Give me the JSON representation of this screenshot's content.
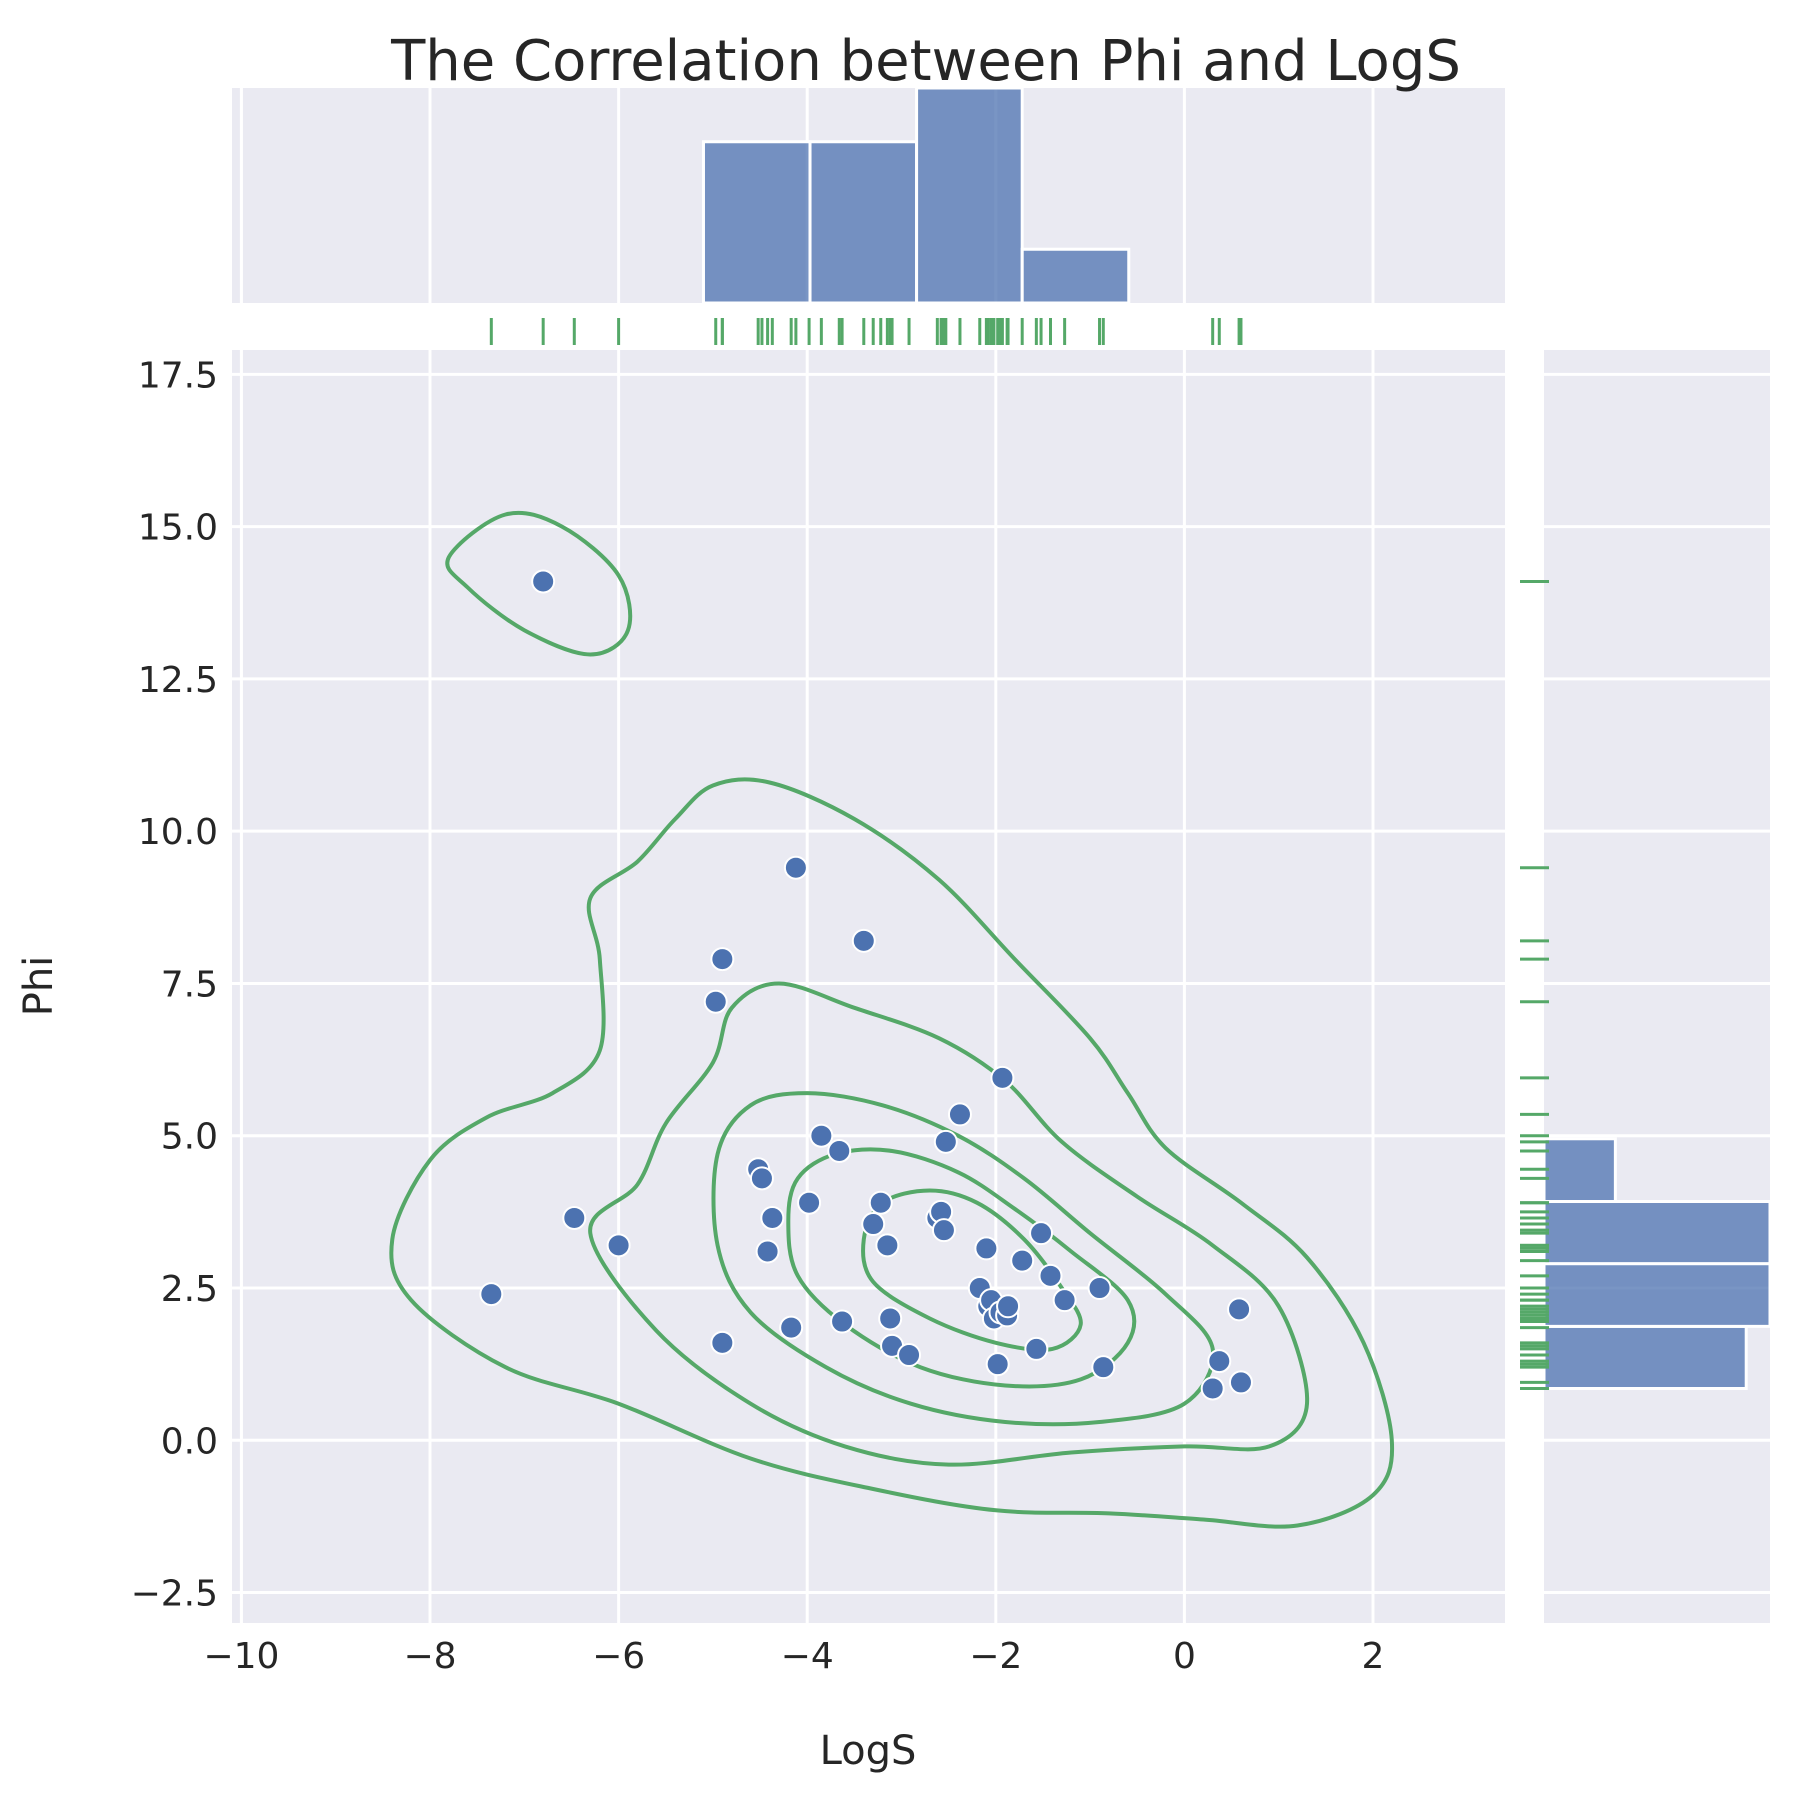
{
  "chart_data": {
    "type": "scatter",
    "title": "The Correlation between Phi and LogS",
    "xlabel": "LogS",
    "ylabel": "Phi",
    "xlim": [
      -10.1,
      3.4
    ],
    "ylim": [
      -3.0,
      17.9
    ],
    "xticks": [
      -10,
      -8,
      -6,
      -4,
      -2,
      0,
      2
    ],
    "xtick_labels": [
      "−10",
      "−8",
      "−6",
      "−4",
      "−2",
      "0",
      "2"
    ],
    "yticks": [
      -2.5,
      0,
      2.5,
      5,
      7.5,
      10,
      12.5,
      15,
      17.5
    ],
    "ytick_labels": [
      "−2.5",
      "0.0",
      "2.5",
      "5.0",
      "7.5",
      "10.0",
      "12.5",
      "15.0",
      "17.5"
    ],
    "grid": true,
    "colors": {
      "points": "#4c72b0",
      "hist": "#4c72b0",
      "rug": "#55a868",
      "contour": "#55a868"
    },
    "points": [
      {
        "x": -6.8,
        "y": 14.1
      },
      {
        "x": -7.35,
        "y": 2.4
      },
      {
        "x": -6.47,
        "y": 3.65
      },
      {
        "x": -6.0,
        "y": 3.2
      },
      {
        "x": -4.97,
        "y": 7.2
      },
      {
        "x": -4.9,
        "y": 7.9
      },
      {
        "x": -4.9,
        "y": 1.6
      },
      {
        "x": -4.52,
        "y": 4.45
      },
      {
        "x": -4.48,
        "y": 4.3
      },
      {
        "x": -4.42,
        "y": 3.1
      },
      {
        "x": -4.37,
        "y": 3.65
      },
      {
        "x": -4.17,
        "y": 1.85
      },
      {
        "x": -4.12,
        "y": 9.4
      },
      {
        "x": -3.98,
        "y": 3.9
      },
      {
        "x": -3.85,
        "y": 5.0
      },
      {
        "x": -3.66,
        "y": 4.75
      },
      {
        "x": -3.63,
        "y": 1.95
      },
      {
        "x": -3.4,
        "y": 8.2
      },
      {
        "x": -3.3,
        "y": 3.55
      },
      {
        "x": -3.22,
        "y": 3.9
      },
      {
        "x": -3.15,
        "y": 3.2
      },
      {
        "x": -3.12,
        "y": 2.0
      },
      {
        "x": -3.1,
        "y": 1.55
      },
      {
        "x": -2.92,
        "y": 1.4
      },
      {
        "x": -2.62,
        "y": 3.65
      },
      {
        "x": -2.58,
        "y": 3.75
      },
      {
        "x": -2.55,
        "y": 3.45
      },
      {
        "x": -2.53,
        "y": 4.9
      },
      {
        "x": -2.38,
        "y": 5.35
      },
      {
        "x": -2.17,
        "y": 2.5
      },
      {
        "x": -2.1,
        "y": 3.15
      },
      {
        "x": -2.08,
        "y": 2.2
      },
      {
        "x": -2.05,
        "y": 2.3
      },
      {
        "x": -2.02,
        "y": 2.0
      },
      {
        "x": -1.98,
        "y": 1.25
      },
      {
        "x": -1.95,
        "y": 2.1
      },
      {
        "x": -1.93,
        "y": 5.95
      },
      {
        "x": -1.88,
        "y": 2.05
      },
      {
        "x": -1.87,
        "y": 2.2
      },
      {
        "x": -1.72,
        "y": 2.95
      },
      {
        "x": -1.57,
        "y": 1.5
      },
      {
        "x": -1.52,
        "y": 3.4
      },
      {
        "x": -1.42,
        "y": 2.7
      },
      {
        "x": -1.27,
        "y": 2.3
      },
      {
        "x": -0.9,
        "y": 2.5
      },
      {
        "x": -0.86,
        "y": 1.2
      },
      {
        "x": 0.3,
        "y": 0.85
      },
      {
        "x": 0.37,
        "y": 1.3
      },
      {
        "x": 0.6,
        "y": 0.95
      },
      {
        "x": 0.58,
        "y": 2.15
      }
    ],
    "x_histogram": {
      "bins": [
        -5.1,
        -3.97,
        -2.84,
        -1.72,
        -0.59
      ],
      "counts": [
        15,
        15,
        20,
        5
      ]
    },
    "y_histogram": {
      "bins": [
        0.85,
        1.87,
        2.9,
        3.92,
        4.95
      ],
      "counts": [
        17,
        19,
        19,
        6
      ]
    },
    "kde_contours": [
      [
        [
          -8.4,
          3.3
        ],
        [
          -8.0,
          4.6
        ],
        [
          -7.4,
          5.3
        ],
        [
          -6.7,
          5.7
        ],
        [
          -6.2,
          6.4
        ],
        [
          -6.2,
          7.9
        ],
        [
          -6.3,
          8.9
        ],
        [
          -5.8,
          9.5
        ],
        [
          -5.4,
          10.2
        ],
        [
          -5.0,
          10.75
        ],
        [
          -4.4,
          10.8
        ],
        [
          -3.5,
          10.2
        ],
        [
          -2.6,
          9.2
        ],
        [
          -1.8,
          7.9
        ],
        [
          -1.0,
          6.6
        ],
        [
          -0.6,
          5.7
        ],
        [
          -0.2,
          4.8
        ],
        [
          0.6,
          3.9
        ],
        [
          1.3,
          3.0
        ],
        [
          1.9,
          1.6
        ],
        [
          2.2,
          0.0
        ],
        [
          2.0,
          -0.9
        ],
        [
          1.2,
          -1.4
        ],
        [
          0.2,
          -1.3
        ],
        [
          -0.8,
          -1.2
        ],
        [
          -2.0,
          -1.15
        ],
        [
          -3.3,
          -0.8
        ],
        [
          -4.6,
          -0.3
        ],
        [
          -6.0,
          0.6
        ],
        [
          -7.2,
          1.2
        ],
        [
          -8.2,
          2.3
        ],
        [
          -8.4,
          3.3
        ]
      ],
      [
        [
          -6.3,
          3.4
        ],
        [
          -5.8,
          4.2
        ],
        [
          -5.5,
          5.2
        ],
        [
          -5.0,
          6.2
        ],
        [
          -4.8,
          7.1
        ],
        [
          -4.3,
          7.5
        ],
        [
          -3.5,
          7.1
        ],
        [
          -2.6,
          6.6
        ],
        [
          -1.9,
          5.9
        ],
        [
          -1.3,
          4.9
        ],
        [
          -0.5,
          4.0
        ],
        [
          0.3,
          3.2
        ],
        [
          1.0,
          2.2
        ],
        [
          1.3,
          0.6
        ],
        [
          0.9,
          -0.1
        ],
        [
          0.0,
          -0.1
        ],
        [
          -1.2,
          -0.2
        ],
        [
          -2.5,
          -0.4
        ],
        [
          -3.6,
          -0.1
        ],
        [
          -4.6,
          0.6
        ],
        [
          -5.6,
          1.8
        ],
        [
          -6.3,
          3.4
        ]
      ],
      [
        [
          -4.95,
          3.2
        ],
        [
          -4.95,
          4.7
        ],
        [
          -4.6,
          5.5
        ],
        [
          -4.0,
          5.7
        ],
        [
          -3.2,
          5.5
        ],
        [
          -2.4,
          5.0
        ],
        [
          -1.7,
          4.3
        ],
        [
          -1.0,
          3.4
        ],
        [
          -0.2,
          2.4
        ],
        [
          0.3,
          1.5
        ],
        [
          0.0,
          0.6
        ],
        [
          -0.9,
          0.3
        ],
        [
          -1.9,
          0.3
        ],
        [
          -2.9,
          0.6
        ],
        [
          -3.8,
          1.2
        ],
        [
          -4.6,
          2.1
        ],
        [
          -4.95,
          3.2
        ]
      ],
      [
        [
          -4.2,
          3.6
        ],
        [
          -4.1,
          4.3
        ],
        [
          -3.7,
          4.7
        ],
        [
          -3.1,
          4.75
        ],
        [
          -2.4,
          4.4
        ],
        [
          -1.8,
          3.8
        ],
        [
          -1.2,
          3.1
        ],
        [
          -0.6,
          2.3
        ],
        [
          -0.6,
          1.6
        ],
        [
          -1.1,
          1.0
        ],
        [
          -1.9,
          0.9
        ],
        [
          -2.8,
          1.2
        ],
        [
          -3.6,
          1.9
        ],
        [
          -4.1,
          2.7
        ],
        [
          -4.2,
          3.6
        ]
      ],
      [
        [
          -3.4,
          3.3
        ],
        [
          -3.2,
          3.9
        ],
        [
          -2.7,
          4.1
        ],
        [
          -2.2,
          3.9
        ],
        [
          -1.7,
          3.3
        ],
        [
          -1.3,
          2.5
        ],
        [
          -1.1,
          1.9
        ],
        [
          -1.4,
          1.5
        ],
        [
          -2.0,
          1.6
        ],
        [
          -2.7,
          2.0
        ],
        [
          -3.3,
          2.6
        ],
        [
          -3.4,
          3.3
        ]
      ],
      [
        [
          -7.8,
          14.5
        ],
        [
          -7.2,
          15.2
        ],
        [
          -6.6,
          15.0
        ],
        [
          -6.0,
          14.2
        ],
        [
          -5.9,
          13.3
        ],
        [
          -6.3,
          12.9
        ],
        [
          -7.0,
          13.3
        ],
        [
          -7.6,
          14.0
        ],
        [
          -7.8,
          14.5
        ]
      ]
    ]
  }
}
